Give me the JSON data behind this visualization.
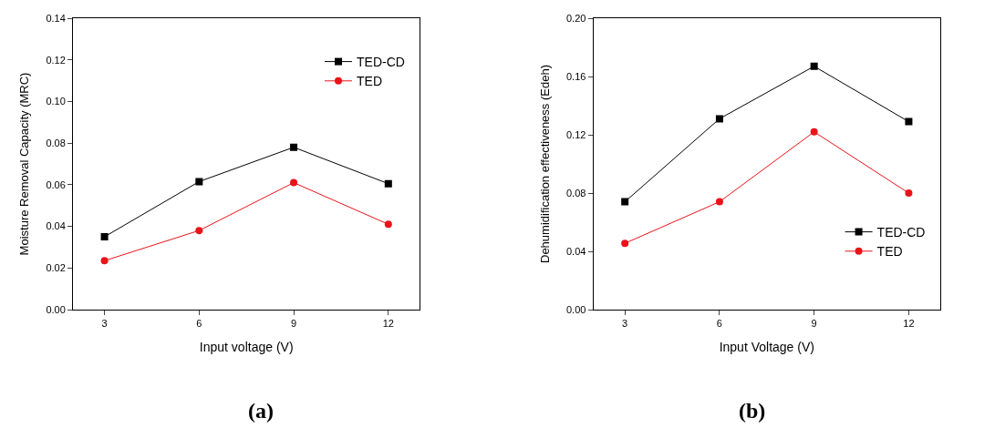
{
  "chart_data": [
    {
      "type": "line",
      "xlabel": "Input voltage (V)",
      "ylabel": "Moisture Removal Capacity (MRC)",
      "x": [
        3,
        6,
        9,
        12
      ],
      "xlim": [
        2,
        13
      ],
      "xticks": [
        3,
        6,
        9,
        12
      ],
      "ylim": [
        0,
        0.14
      ],
      "yticks": [
        {
          "value": 0,
          "label": "0.00"
        },
        0.02,
        0.04,
        0.06,
        0.08,
        {
          "value": 0.1,
          "label": "0.10"
        },
        0.12,
        0.14
      ],
      "legend": "top right",
      "annotations": [
        "(a)"
      ],
      "series": [
        {
          "name": "TED-CD",
          "color": "#000000",
          "marker": "square",
          "values": [
            0.035,
            0.0615,
            0.078,
            0.0605
          ]
        },
        {
          "name": "TED",
          "color": "#e8141a",
          "marker": "circle",
          "values": [
            0.0235,
            0.038,
            0.061,
            0.041
          ]
        }
      ]
    },
    {
      "type": "line",
      "xlabel": "Input Voltage (V)",
      "ylabel": "Dehumidification effectiveness (Edeh)",
      "x": [
        3,
        6,
        9,
        12
      ],
      "xlim": [
        2,
        13
      ],
      "xticks": [
        3,
        6,
        9,
        12
      ],
      "ylim": [
        0,
        0.2
      ],
      "yticks": [
        {
          "value": 0,
          "label": "0.00"
        },
        0.04,
        0.08,
        0.12,
        0.16,
        {
          "value": 0.2,
          "label": "0.20"
        }
      ],
      "legend": "bottom right",
      "annotations": [
        "(b)"
      ],
      "series": [
        {
          "name": "TED-CD",
          "color": "#000000",
          "marker": "square",
          "values": [
            0.074,
            0.131,
            0.167,
            0.129
          ]
        },
        {
          "name": "TED",
          "color": "#e8141a",
          "marker": "circle",
          "values": [
            0.0455,
            0.074,
            0.122,
            0.08
          ]
        }
      ]
    }
  ]
}
